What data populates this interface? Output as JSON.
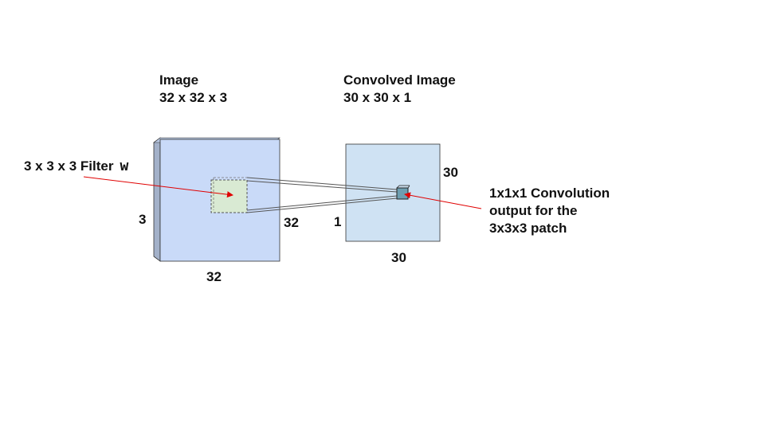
{
  "input_volume": {
    "title": "Image",
    "dims": "32 x 32 x 3",
    "width_label": "32",
    "height_label": "32",
    "depth_label": "3",
    "fill_color": "#c9daf8",
    "side_color": "#a3b1c9"
  },
  "filter": {
    "label": "3 x 3 x 3 Filter",
    "symbol": "w",
    "fill_color": "#d9ead3"
  },
  "output_volume": {
    "title": "Convolved Image",
    "dims": "30 x 30 x 1",
    "width_label": "30",
    "height_label": "30",
    "depth_label": "1",
    "fill_color": "#cfe2f3",
    "output_cell_color": "#6d9eb0"
  },
  "output_note": {
    "lines": [
      "1x1x1 Convolution",
      "output for the",
      "3x3x3 patch"
    ]
  },
  "arrow_color": "#e00000"
}
